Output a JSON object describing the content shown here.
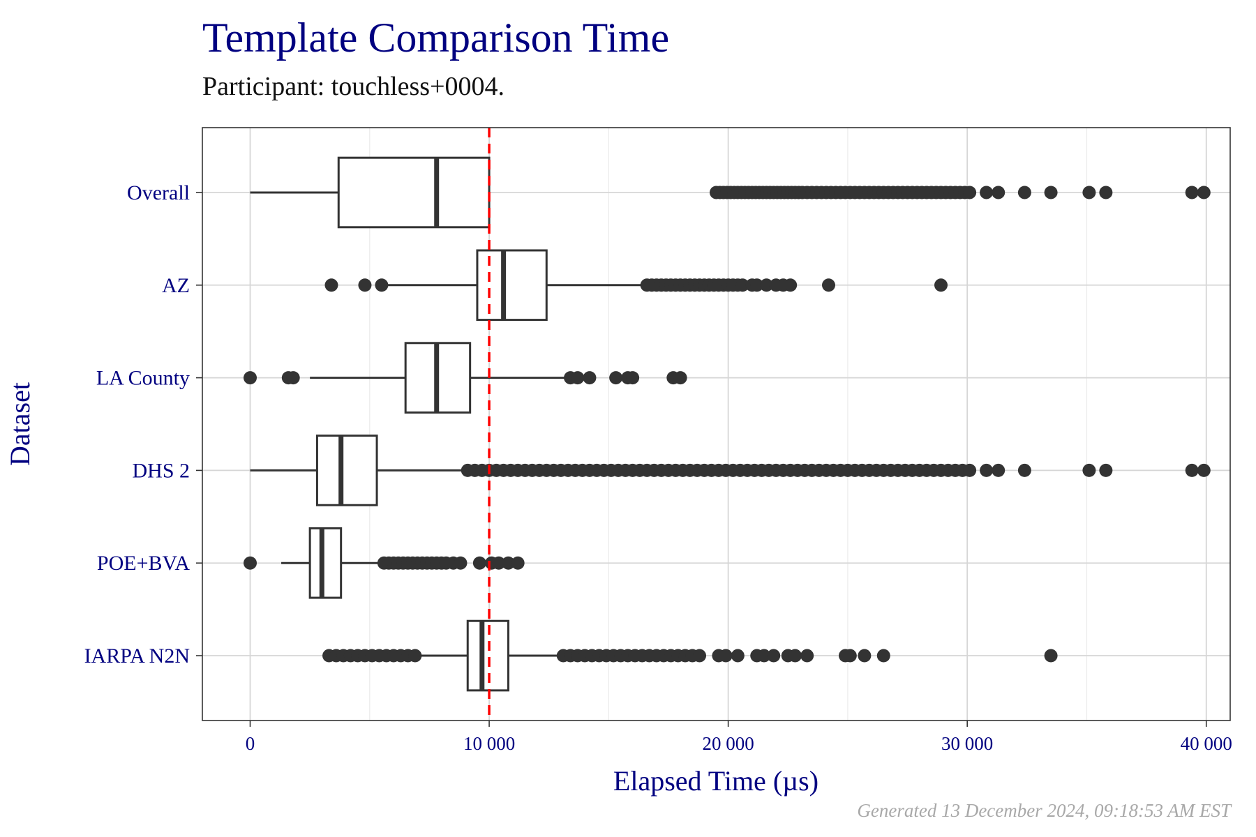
{
  "title": "Template Comparison Time",
  "subtitle": "Participant: touchless+0004.",
  "footer": "Generated 13 December 2024, 09:18:53 AM EST",
  "colors": {
    "title": "#000080",
    "axis_text": "#000080",
    "box_stroke": "#333333",
    "outlier": "#333333",
    "grid_major": "#d6d6d6",
    "grid_minor": "#ebebeb",
    "reference_line": "#ff0000",
    "footer": "#a8a8a8"
  },
  "chart_data": {
    "type": "boxplot",
    "orientation": "horizontal",
    "title": "Template Comparison Time",
    "subtitle": "Participant: touchless+0004.",
    "xlabel": "Elapsed Time (µs)",
    "ylabel": "Dataset",
    "xlim": [
      -2000,
      41000
    ],
    "x_ticks": [
      0,
      10000,
      20000,
      30000,
      40000
    ],
    "x_tick_labels": [
      "0",
      "10 000",
      "20 000",
      "30 000",
      "40 000"
    ],
    "grid": true,
    "reference_line": {
      "x": 10000,
      "style": "dashed",
      "color": "#ff0000"
    },
    "categories": [
      "Overall",
      "AZ",
      "LA County",
      "DHS 2",
      "POE+BVA",
      "IARPA N2N"
    ],
    "boxes": [
      {
        "name": "Overall",
        "whisker_low": 0,
        "q1": 3700,
        "median": 7800,
        "q3": 10000,
        "whisker_high": 10000,
        "outliers": [
          19500,
          19650,
          19800,
          19950,
          20100,
          20250,
          20400,
          20550,
          20700,
          20850,
          21000,
          21150,
          21300,
          21450,
          21600,
          21750,
          21900,
          22050,
          22200,
          22350,
          22500,
          22650,
          22800,
          22950,
          23100,
          23300,
          23500,
          23700,
          23900,
          24100,
          24300,
          24500,
          24700,
          24900,
          25100,
          25300,
          25500,
          25700,
          25900,
          26100,
          26300,
          26500,
          26700,
          26900,
          27100,
          27300,
          27500,
          27700,
          27900,
          28100,
          28300,
          28500,
          28700,
          28900,
          29100,
          29300,
          29500,
          29700,
          29900,
          30100,
          30800,
          31300,
          32400,
          33500,
          35100,
          35800,
          39400,
          39900
        ]
      },
      {
        "name": "AZ",
        "whisker_low": 5500,
        "q1": 9500,
        "median": 10600,
        "q3": 12400,
        "whisker_high": 16500,
        "outliers": [
          3400,
          4800,
          5500,
          16600,
          16800,
          17000,
          17200,
          17400,
          17600,
          17800,
          18000,
          18200,
          18400,
          18600,
          18800,
          19000,
          19200,
          19400,
          19600,
          19800,
          20000,
          20200,
          20400,
          20600,
          21000,
          21200,
          21600,
          22000,
          22300,
          22600,
          24200,
          28900
        ]
      },
      {
        "name": "LA County",
        "whisker_low": 2500,
        "q1": 6500,
        "median": 7800,
        "q3": 9200,
        "whisker_high": 13300,
        "outliers": [
          0,
          1600,
          1800,
          13400,
          13700,
          14200,
          15300,
          15800,
          16000,
          17700,
          18000
        ]
      },
      {
        "name": "DHS 2",
        "whisker_low": 0,
        "q1": 2800,
        "median": 3800,
        "q3": 5300,
        "whisker_high": 8900,
        "outliers": [
          9100,
          9400,
          9700,
          10000,
          10300,
          10600,
          10900,
          11200,
          11500,
          11800,
          12100,
          12400,
          12700,
          13000,
          13300,
          13600,
          13900,
          14200,
          14500,
          14800,
          15100,
          15400,
          15700,
          16000,
          16300,
          16600,
          16900,
          17200,
          17500,
          17800,
          18100,
          18400,
          18700,
          19000,
          19300,
          19600,
          19900,
          20200,
          20500,
          20800,
          21100,
          21400,
          21700,
          22000,
          22300,
          22600,
          22900,
          23200,
          23500,
          23800,
          24100,
          24400,
          24700,
          25000,
          25300,
          25600,
          25900,
          26200,
          26500,
          26800,
          27100,
          27400,
          27700,
          28000,
          28300,
          28600,
          28900,
          29200,
          29500,
          29800,
          30100,
          30800,
          31300,
          32400,
          35100,
          35800,
          39400,
          39900
        ]
      },
      {
        "name": "POE+BVA",
        "whisker_low": 1300,
        "q1": 2500,
        "median": 3000,
        "q3": 3800,
        "whisker_high": 5500,
        "outliers": [
          0,
          5600,
          5800,
          6000,
          6200,
          6400,
          6600,
          6800,
          7000,
          7200,
          7400,
          7600,
          7800,
          8000,
          8200,
          8500,
          8800,
          9600,
          10100,
          10400,
          10800,
          11200
        ]
      },
      {
        "name": "IARPA N2N",
        "whisker_low": 7000,
        "q1": 9100,
        "median": 9700,
        "q3": 10800,
        "whisker_high": 13000,
        "outliers": [
          3300,
          3600,
          3900,
          4200,
          4500,
          4800,
          5100,
          5400,
          5700,
          6000,
          6300,
          6600,
          6900,
          13100,
          13400,
          13700,
          14000,
          14300,
          14600,
          14900,
          15200,
          15500,
          15800,
          16100,
          16400,
          16700,
          17000,
          17300,
          17600,
          17900,
          18200,
          18500,
          18800,
          19600,
          19900,
          20400,
          21200,
          21500,
          21900,
          22500,
          22800,
          23300,
          24900,
          25100,
          25700,
          26500,
          33500
        ]
      }
    ]
  }
}
